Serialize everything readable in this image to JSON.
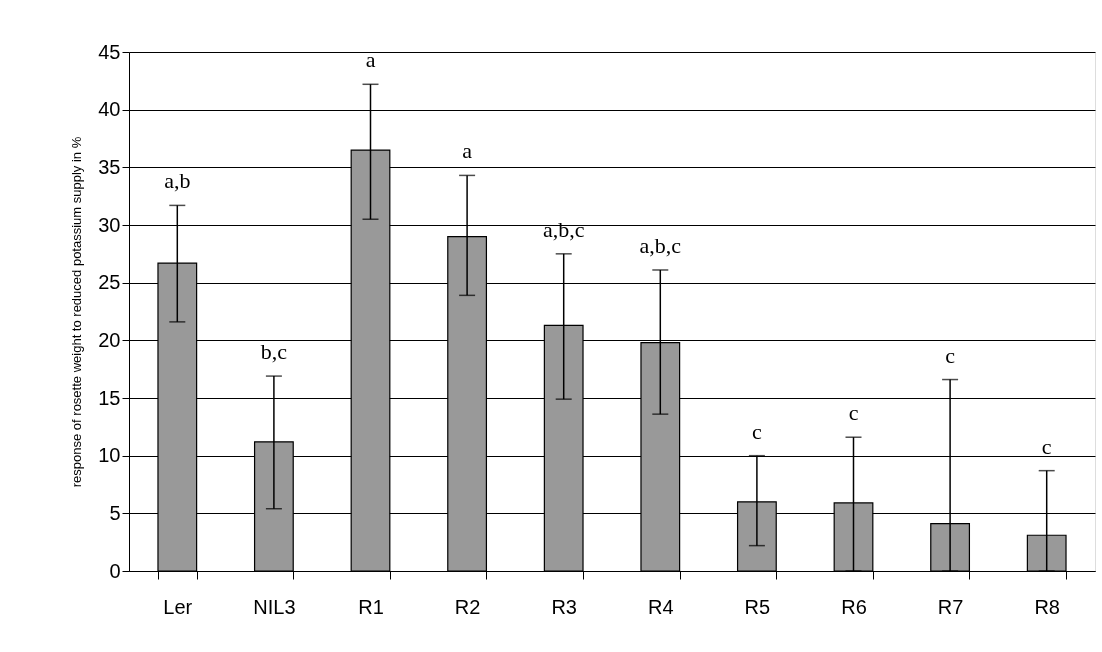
{
  "chart_data": {
    "type": "bar",
    "ylabel": "response of rosette weight to reduced potassium supply in %",
    "categories": [
      "Ler",
      "NIL3",
      "R1",
      "R2",
      "R3",
      "R4",
      "R5",
      "R6",
      "R7",
      "R8"
    ],
    "values": [
      26.7,
      11.2,
      36.5,
      29.0,
      21.3,
      19.8,
      6.0,
      5.9,
      4.1,
      3.1
    ],
    "errors": [
      [
        21.6,
        31.7
      ],
      [
        5.4,
        16.9
      ],
      [
        30.5,
        42.2
      ],
      [
        23.9,
        34.3
      ],
      [
        14.9,
        27.5
      ],
      [
        13.6,
        26.1
      ],
      [
        2.2,
        10.0
      ],
      [
        0,
        11.6
      ],
      [
        0,
        16.6
      ],
      [
        0,
        8.7
      ]
    ],
    "color": "#999999",
    "ylim": [
      0,
      45
    ],
    "yticks": [
      0,
      5,
      10,
      15,
      20,
      25,
      30,
      35,
      40,
      45
    ],
    "grid": "y",
    "annotations": [
      "a,b",
      "b,c",
      "a",
      "a",
      "a,b,c",
      "a,b,c",
      "c",
      "c",
      "c",
      "c"
    ]
  }
}
